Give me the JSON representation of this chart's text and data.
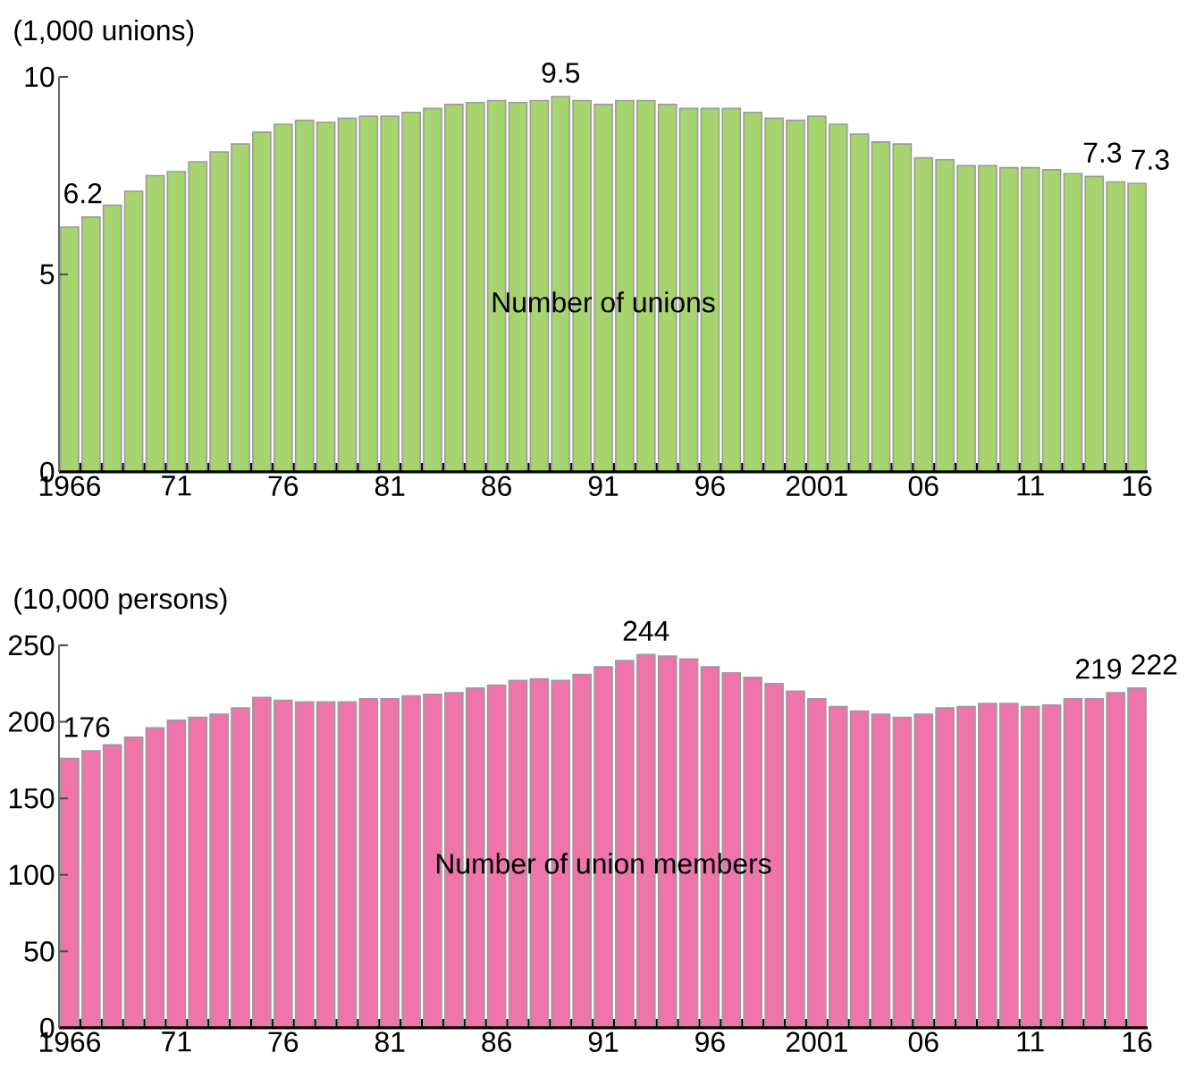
{
  "chart_data": [
    {
      "type": "bar",
      "ylabel": "(1,000 unions)",
      "categories": [
        "1966",
        null,
        null,
        null,
        null,
        "71",
        null,
        null,
        null,
        null,
        "76",
        null,
        null,
        null,
        null,
        "81",
        null,
        null,
        null,
        null,
        "86",
        null,
        null,
        null,
        null,
        "91",
        null,
        null,
        null,
        null,
        "96",
        null,
        null,
        null,
        null,
        "2001",
        null,
        null,
        null,
        null,
        "06",
        null,
        null,
        null,
        null,
        "11",
        null,
        null,
        null,
        null,
        "16"
      ],
      "series": [
        {
          "name": "Number of unions",
          "color": "#a8d46f",
          "values": [
            6.2,
            6.45,
            6.75,
            7.1,
            7.5,
            7.6,
            7.85,
            8.1,
            8.3,
            8.6,
            8.8,
            8.9,
            8.85,
            8.95,
            9.0,
            9.0,
            9.1,
            9.2,
            9.3,
            9.35,
            9.4,
            9.35,
            9.4,
            9.5,
            9.4,
            9.3,
            9.4,
            9.4,
            9.3,
            9.2,
            9.2,
            9.2,
            9.1,
            8.95,
            8.9,
            9.0,
            8.8,
            8.55,
            8.35,
            8.3,
            7.95,
            7.9,
            7.75,
            7.75,
            7.7,
            7.7,
            7.65,
            7.55,
            7.48,
            7.34,
            7.3
          ],
          "value_labels": [
            "6.2",
            null,
            null,
            null,
            null,
            null,
            null,
            null,
            null,
            null,
            null,
            null,
            null,
            null,
            null,
            null,
            null,
            null,
            null,
            null,
            null,
            null,
            null,
            "9.5",
            null,
            null,
            null,
            null,
            null,
            null,
            null,
            null,
            null,
            null,
            null,
            null,
            null,
            null,
            null,
            null,
            null,
            null,
            null,
            null,
            null,
            null,
            null,
            null,
            null,
            "7.3",
            "7.3"
          ]
        }
      ],
      "ylim": [
        0,
        10
      ],
      "yticks": [
        0,
        5,
        10
      ]
    },
    {
      "type": "bar",
      "ylabel": "(10,000 persons)",
      "categories": [
        "1966",
        null,
        null,
        null,
        null,
        "71",
        null,
        null,
        null,
        null,
        "76",
        null,
        null,
        null,
        null,
        "81",
        null,
        null,
        null,
        null,
        "86",
        null,
        null,
        null,
        null,
        "91",
        null,
        null,
        null,
        null,
        "96",
        null,
        null,
        null,
        null,
        "2001",
        null,
        null,
        null,
        null,
        "06",
        null,
        null,
        null,
        null,
        "11",
        null,
        null,
        null,
        null,
        "16"
      ],
      "series": [
        {
          "name": "Number of union members",
          "color": "#ee74a9",
          "values": [
            176,
            181,
            185,
            190,
            196,
            201,
            203,
            205,
            209,
            216,
            214,
            213,
            213,
            213,
            215,
            215,
            217,
            218,
            219,
            222,
            224,
            227,
            228,
            227,
            231,
            236,
            240,
            244,
            243,
            241,
            236,
            232,
            229,
            225,
            220,
            215,
            210,
            207,
            205,
            203,
            205,
            209,
            210,
            212,
            212,
            210,
            211,
            215,
            215,
            219,
            222
          ],
          "value_labels": [
            "176",
            null,
            null,
            null,
            null,
            null,
            null,
            null,
            null,
            null,
            null,
            null,
            null,
            null,
            null,
            null,
            null,
            null,
            null,
            null,
            null,
            null,
            null,
            null,
            null,
            null,
            null,
            "244",
            null,
            null,
            null,
            null,
            null,
            null,
            null,
            null,
            null,
            null,
            null,
            null,
            null,
            null,
            null,
            null,
            null,
            null,
            null,
            null,
            null,
            "219",
            "222"
          ]
        }
      ],
      "ylim": [
        0,
        250
      ],
      "yticks": [
        0,
        50,
        100,
        150,
        200,
        250
      ]
    }
  ]
}
